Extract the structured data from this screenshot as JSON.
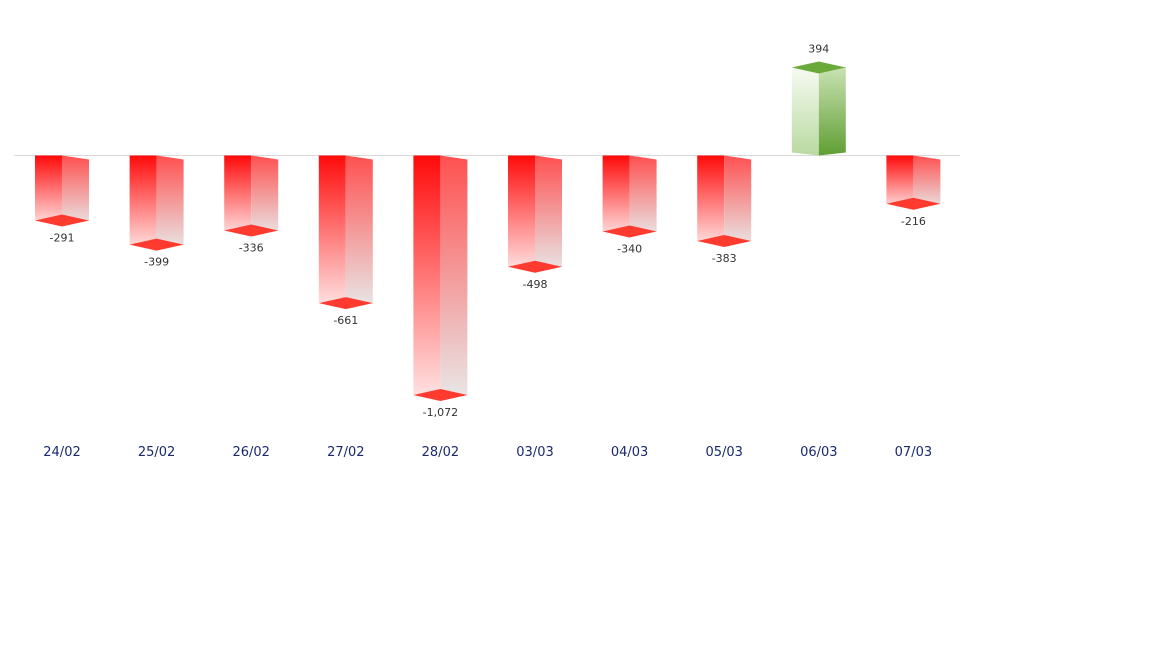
{
  "chart_data": {
    "type": "bar",
    "categories": [
      "24/02",
      "25/02",
      "26/02",
      "27/02",
      "28/02",
      "03/03",
      "04/03",
      "05/03",
      "06/03",
      "07/03"
    ],
    "values": [
      -291,
      -399,
      -336,
      -661,
      -1072,
      -498,
      -340,
      -383,
      394,
      -216
    ],
    "value_labels": [
      "-291",
      "-399",
      "-336",
      "-661",
      "-1,072",
      "-498",
      "-340",
      "-383",
      "394",
      "-216"
    ],
    "title": "",
    "xlabel": "",
    "ylabel": "",
    "style": "3d-column",
    "grid": false,
    "legend": "none",
    "colors": {
      "negative": "#ff0000",
      "positive": "#6aaa3a",
      "baseline": "#d9d9d9",
      "tick_text": "#1a2a6c",
      "label_text": "#333333"
    }
  }
}
